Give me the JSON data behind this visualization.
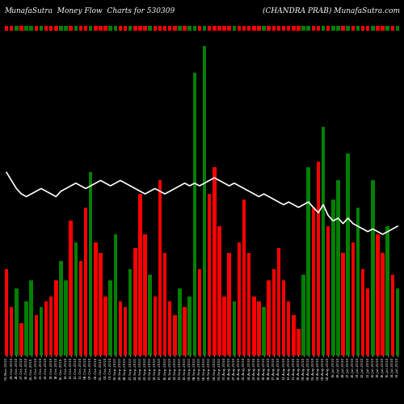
{
  "title_left": "MunafaSutra  Money Flow  Charts for 530309",
  "title_right": "(CHANDRA PRAB) MunafaSutra.com",
  "background_color": "#000000",
  "bar_colors": [
    "red",
    "red",
    "green",
    "red",
    "green",
    "green",
    "red",
    "green",
    "red",
    "red",
    "red",
    "green",
    "green",
    "red",
    "green",
    "red",
    "red",
    "green",
    "red",
    "red",
    "red",
    "green",
    "green",
    "red",
    "red",
    "green",
    "red",
    "red",
    "red",
    "green",
    "red",
    "red",
    "red",
    "red",
    "red",
    "green",
    "red",
    "green",
    "green",
    "red",
    "green",
    "red",
    "red",
    "red",
    "red",
    "red",
    "green",
    "red",
    "red",
    "red",
    "red",
    "red",
    "green",
    "red",
    "red",
    "red",
    "red",
    "red",
    "red",
    "red",
    "green",
    "green",
    "red",
    "red",
    "green",
    "red",
    "green",
    "green",
    "red",
    "green",
    "red",
    "green",
    "red",
    "red",
    "green",
    "red",
    "red",
    "green",
    "red",
    "green"
  ],
  "bar_heights": [
    0.32,
    0.18,
    0.25,
    0.12,
    0.2,
    0.28,
    0.15,
    0.18,
    0.2,
    0.22,
    0.28,
    0.35,
    0.28,
    0.5,
    0.42,
    0.35,
    0.55,
    0.68,
    0.42,
    0.38,
    0.22,
    0.28,
    0.45,
    0.2,
    0.18,
    0.32,
    0.4,
    0.6,
    0.45,
    0.3,
    0.22,
    0.65,
    0.38,
    0.2,
    0.15,
    0.25,
    0.18,
    0.22,
    1.05,
    0.32,
    1.15,
    0.6,
    0.7,
    0.48,
    0.22,
    0.38,
    0.2,
    0.42,
    0.58,
    0.38,
    0.22,
    0.2,
    0.18,
    0.28,
    0.32,
    0.4,
    0.28,
    0.2,
    0.15,
    0.1,
    0.3,
    0.7,
    0.55,
    0.72,
    0.85,
    0.48,
    0.58,
    0.65,
    0.38,
    0.75,
    0.42,
    0.55,
    0.32,
    0.25,
    0.65,
    0.45,
    0.38,
    0.48,
    0.3,
    0.25
  ],
  "line_color": "#ffffff",
  "line_data": [
    0.68,
    0.65,
    0.62,
    0.6,
    0.59,
    0.6,
    0.61,
    0.62,
    0.61,
    0.6,
    0.59,
    0.61,
    0.62,
    0.63,
    0.64,
    0.63,
    0.62,
    0.63,
    0.64,
    0.65,
    0.64,
    0.63,
    0.64,
    0.65,
    0.64,
    0.63,
    0.62,
    0.61,
    0.6,
    0.61,
    0.62,
    0.61,
    0.6,
    0.61,
    0.62,
    0.63,
    0.64,
    0.63,
    0.64,
    0.63,
    0.64,
    0.65,
    0.66,
    0.65,
    0.64,
    0.63,
    0.64,
    0.63,
    0.62,
    0.61,
    0.6,
    0.59,
    0.6,
    0.59,
    0.58,
    0.57,
    0.56,
    0.57,
    0.56,
    0.55,
    0.56,
    0.57,
    0.55,
    0.53,
    0.56,
    0.52,
    0.5,
    0.51,
    0.49,
    0.51,
    0.49,
    0.48,
    0.47,
    0.46,
    0.47,
    0.46,
    0.45,
    0.46,
    0.47,
    0.48
  ],
  "title_fontsize": 6.5,
  "ylim_max": 1.2,
  "labels": [
    "01-Nov-2010",
    "29-Oct-2010",
    "28-Oct-2010",
    "27-Oct-2010",
    "26-Oct-2010",
    "25-Oct-2010",
    "22-Oct-2010",
    "21-Oct-2010",
    "20-Oct-2010",
    "19-Oct-2010",
    "18-Oct-2010",
    "15-Oct-2010",
    "14-Oct-2010",
    "13-Oct-2010",
    "12-Oct-2010",
    "11-Oct-2010",
    "08-Oct-2010",
    "07-Oct-2010",
    "06-Oct-2010",
    "05-Oct-2010",
    "04-Oct-2010",
    "01-Oct-2010",
    "30-Sep-2010",
    "29-Sep-2010",
    "28-Sep-2010",
    "27-Sep-2010",
    "24-Sep-2010",
    "23-Sep-2010",
    "22-Sep-2010",
    "21-Sep-2010",
    "20-Sep-2010",
    "17-Sep-2010",
    "16-Sep-2010",
    "15-Sep-2010",
    "14-Sep-2010",
    "13-Sep-2010",
    "10-Sep-2010",
    "09-Sep-2010",
    "08-Sep-2010",
    "07-Sep-2010",
    "06-Sep-2010",
    "03-Sep-2010",
    "02-Sep-2010",
    "01-Sep-2010",
    "31-Aug-2010",
    "30-Aug-2010",
    "27-Aug-2010",
    "26-Aug-2010",
    "25-Aug-2010",
    "24-Aug-2010",
    "23-Aug-2010",
    "20-Aug-2010",
    "19-Aug-2010",
    "18-Aug-2010",
    "17-Aug-2010",
    "16-Aug-2010",
    "13-Aug-2010",
    "12-Aug-2010",
    "11-Aug-2010",
    "10-Aug-2010",
    "09-Aug-2010",
    "06-Aug-2010",
    "05-Aug-2010",
    "04-Aug-2010",
    "03-Aug-2010",
    "02-Aug-2010",
    "30-Jul-2010",
    "29-Jul-2010",
    "28-Jul-2010",
    "27-Jul-2010",
    "26-Jul-2010",
    "23-Jul-2010",
    "22-Jul-2010",
    "21-Jul-2010",
    "20-Jul-2010",
    "19-Jul-2010",
    "16-Jul-2010",
    "15-Jul-2010",
    "14-Jul-2010",
    "13-Jul-2010"
  ]
}
